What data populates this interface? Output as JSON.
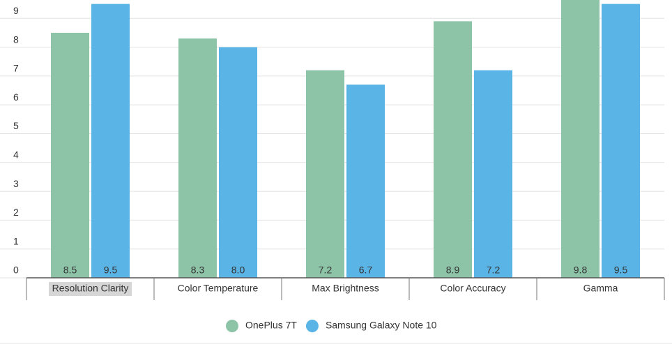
{
  "chart_data": {
    "type": "bar",
    "categories": [
      "Resolution Clarity",
      "Color Temperature",
      "Max Brightness",
      "Color Accuracy",
      "Gamma"
    ],
    "series": [
      {
        "name": "OnePlus 7T",
        "color": "#8dc3a7",
        "values": [
          8.5,
          8.3,
          7.2,
          8.9,
          9.8
        ],
        "value_labels": [
          "8.5",
          "8.3",
          "7.2",
          "8.9",
          "9.8"
        ]
      },
      {
        "name": "Samsung Galaxy Note 10",
        "color": "#5ab4e5",
        "values": [
          9.5,
          8.0,
          6.7,
          7.2,
          9.5
        ],
        "value_labels": [
          "9.5",
          "8.0",
          "6.7",
          "7.2",
          "9.5"
        ]
      }
    ],
    "ylim": [
      0,
      10
    ],
    "yticks": [
      0,
      1,
      2,
      3,
      4,
      5,
      6,
      7,
      8,
      9
    ],
    "grid": true,
    "legend": "bottom"
  }
}
